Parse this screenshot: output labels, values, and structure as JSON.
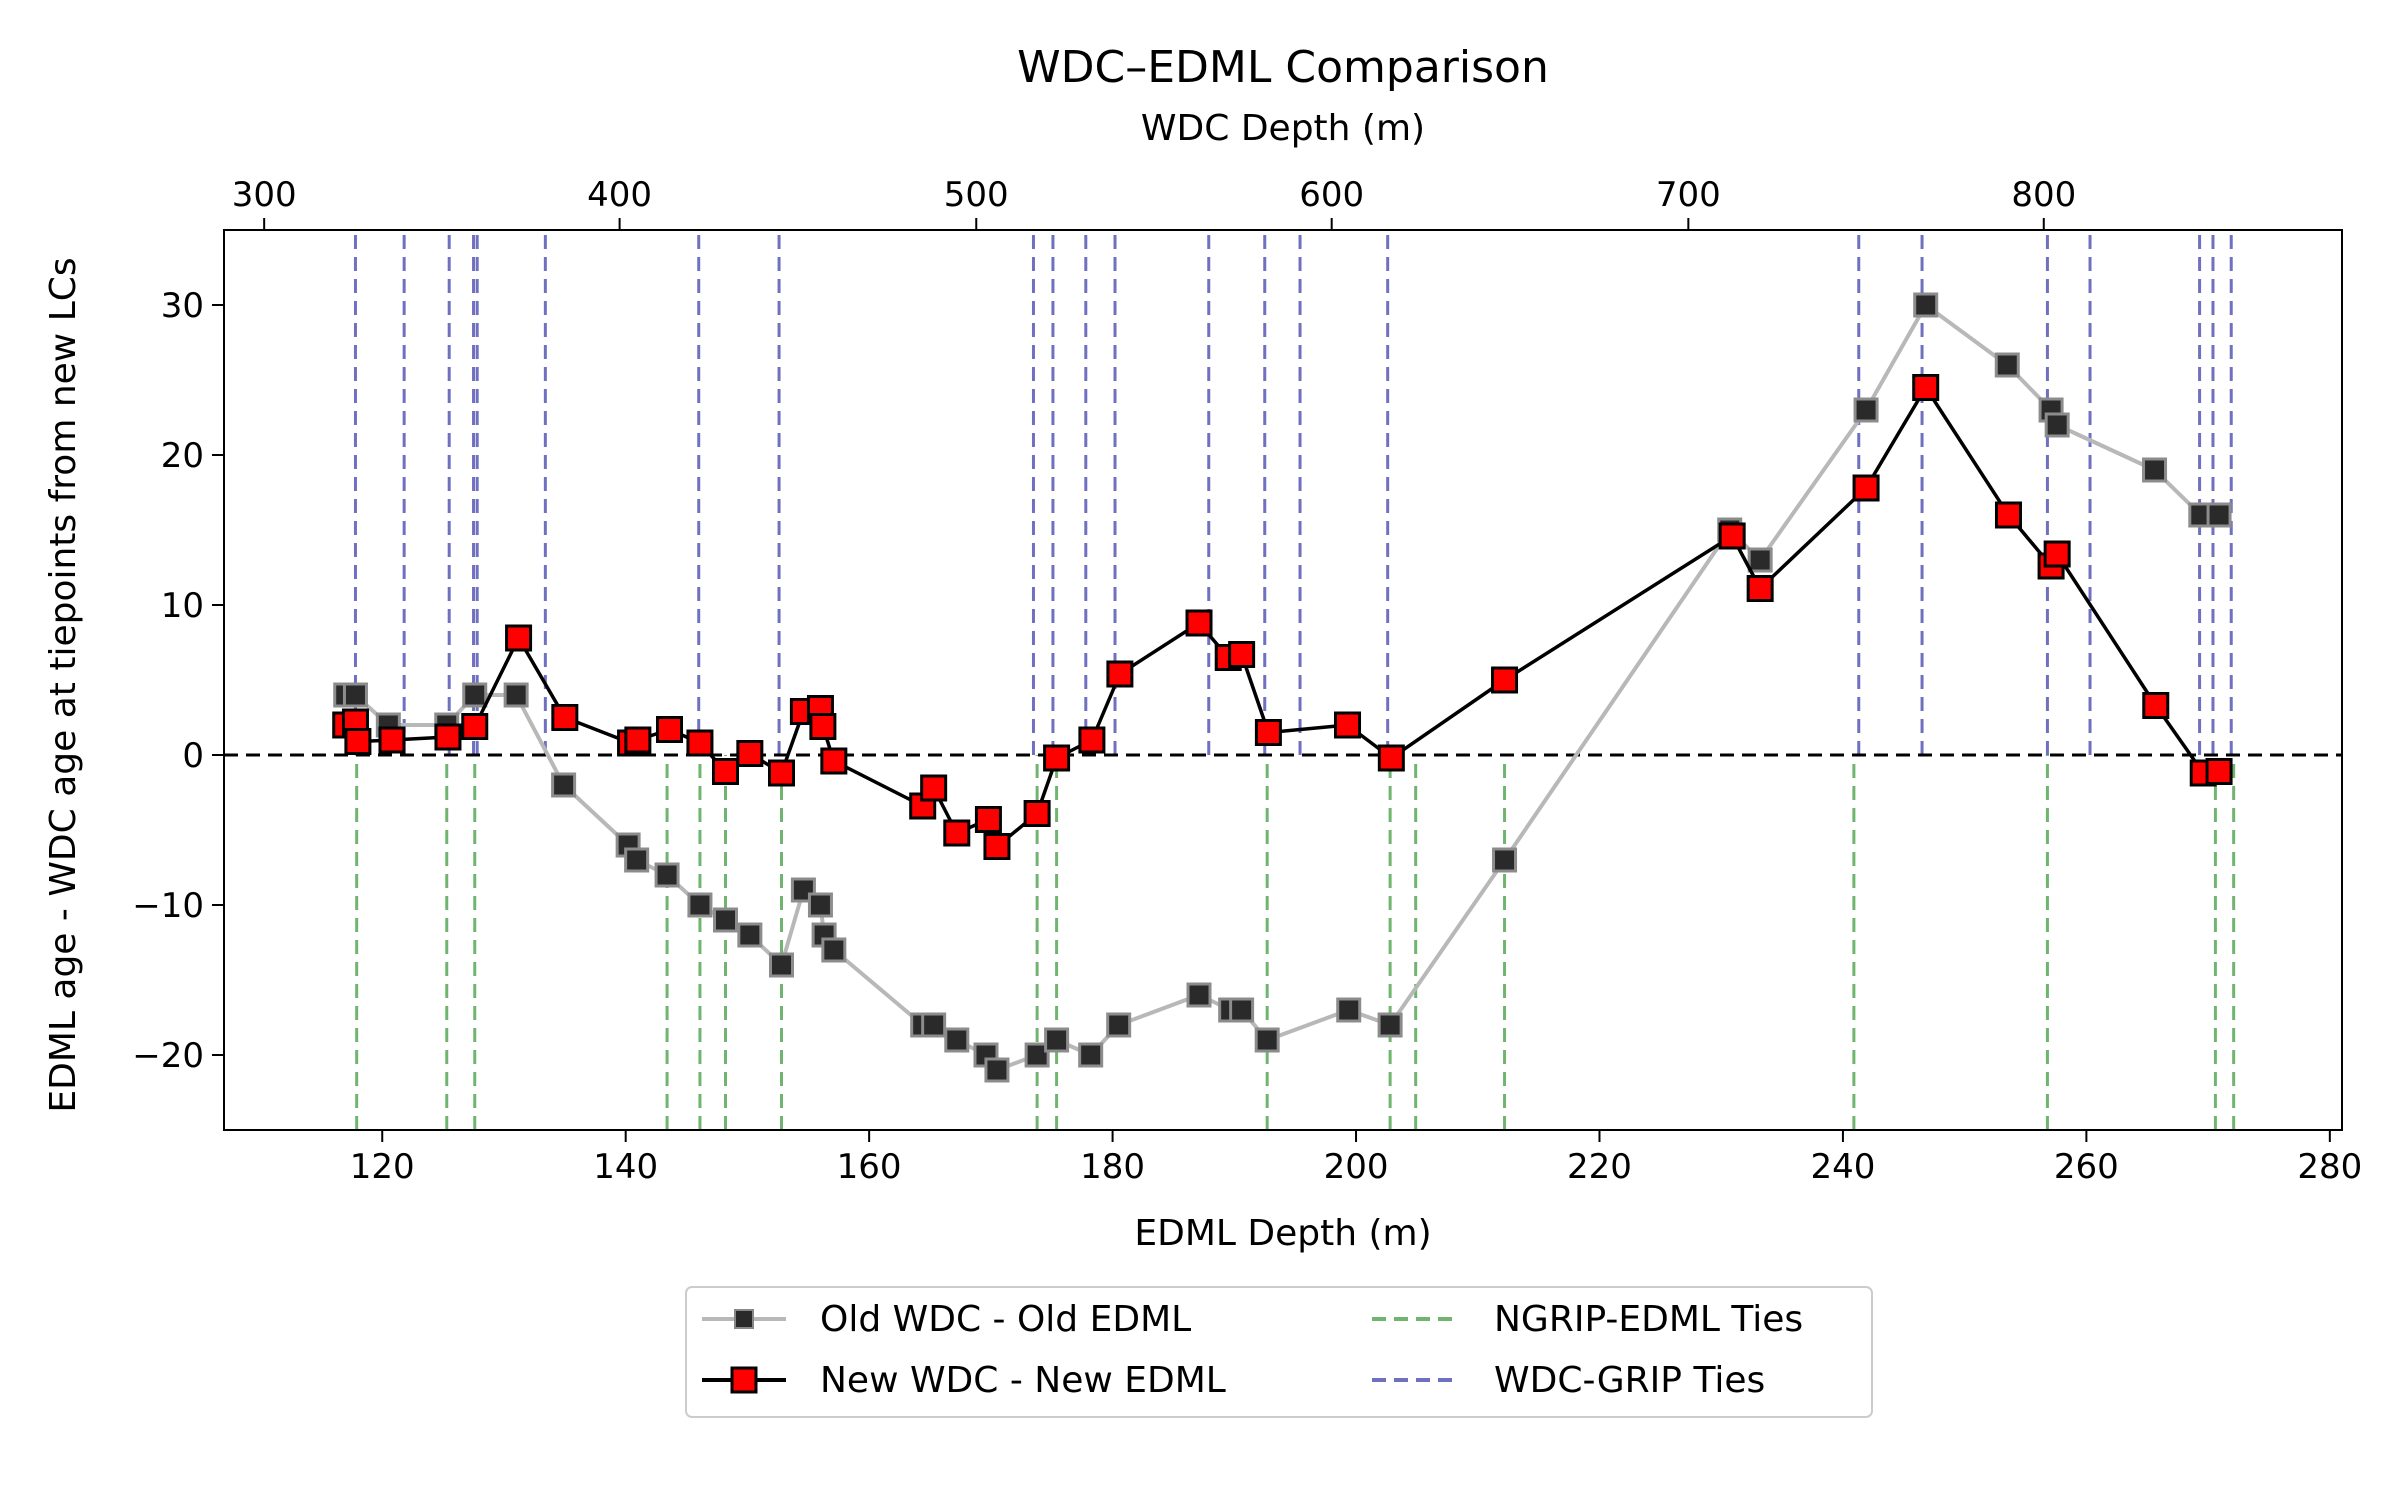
{
  "chart_data": {
    "type": "line",
    "title": "WDC–EDML Comparison",
    "xlabel": "EDML Depth (m)",
    "ylabel": "EDML age - WDC age at tiepoints from new LCs",
    "top_xlabel": "WDC Depth (m)",
    "xlim": [
      107,
      281
    ],
    "ylim": [
      -25,
      35
    ],
    "x_ticks": [
      120,
      140,
      160,
      180,
      200,
      220,
      240,
      260,
      280
    ],
    "y_ticks": [
      -20,
      -10,
      0,
      10,
      20,
      30
    ],
    "y_tick_labels": [
      "−20",
      "−10",
      "0",
      "10",
      "20",
      "30"
    ],
    "top_ticks": [
      {
        "label": "300",
        "x": 110.3
      },
      {
        "label": "400",
        "x": 139.5
      },
      {
        "label": "500",
        "x": 168.8
      },
      {
        "label": "600",
        "x": 198.0
      },
      {
        "label": "700",
        "x": 227.3
      },
      {
        "label": "800",
        "x": 256.5
      }
    ],
    "zero_line": 0,
    "grid": false,
    "legend_position": "below",
    "series": [
      {
        "name": "Old WDC - Old EDML",
        "color": "#b8b8b8",
        "marker_color": "#2a2a2a",
        "x": [
          117.0,
          117.8,
          120.5,
          125.3,
          127.6,
          131.0,
          134.9,
          140.2,
          140.9,
          143.4,
          146.1,
          148.2,
          150.2,
          152.8,
          154.6,
          156.0,
          156.3,
          157.1,
          164.4,
          165.3,
          167.2,
          169.6,
          170.5,
          173.8,
          175.4,
          178.2,
          180.5,
          187.1,
          189.7,
          190.6,
          192.7,
          199.4,
          202.8,
          212.2,
          230.7,
          233.2,
          241.9,
          246.8,
          253.5,
          257.1,
          257.6,
          265.6,
          269.4,
          270.9
        ],
        "y": [
          4,
          4,
          2,
          2,
          4,
          4,
          -2,
          -6,
          -7,
          -8,
          -10,
          -11,
          -12,
          -14,
          -9,
          -10,
          -12,
          -13,
          -18,
          -18,
          -19,
          -20,
          -21,
          -20,
          -19,
          -20,
          -18,
          -16,
          -17,
          -17,
          -19,
          -17,
          -18,
          -7,
          15,
          13,
          23,
          30,
          26,
          23,
          22,
          19,
          16,
          16
        ]
      },
      {
        "name": "New WDC - New EDML",
        "color": "#000000",
        "marker_color": "#ff0000",
        "x": [
          117.0,
          117.8,
          118.0,
          120.8,
          125.4,
          127.6,
          131.2,
          135.0,
          140.4,
          141.0,
          143.6,
          146.1,
          148.2,
          150.2,
          152.8,
          154.6,
          156.0,
          156.2,
          157.1,
          164.4,
          165.3,
          167.2,
          169.8,
          170.5,
          173.8,
          175.4,
          178.3,
          180.6,
          187.1,
          189.5,
          190.6,
          192.8,
          199.3,
          202.9,
          212.2,
          230.9,
          233.2,
          241.9,
          246.8,
          253.6,
          257.1,
          257.6,
          265.7,
          269.6,
          270.9
        ],
        "y": [
          2,
          2.2,
          0.9,
          1,
          1.2,
          1.9,
          7.8,
          2.5,
          0.8,
          1,
          1.7,
          0.8,
          -1.1,
          0.1,
          -1.2,
          2.9,
          3.1,
          1.9,
          -0.4,
          -3.4,
          -2.2,
          -5.2,
          -4.3,
          -6.1,
          -3.9,
          -0.2,
          1,
          5.4,
          8.8,
          6.5,
          6.7,
          1.5,
          2,
          -0.2,
          5,
          14.6,
          11.1,
          17.8,
          24.5,
          16,
          12.6,
          13.4,
          3.3,
          -1.2,
          -1.1
        ]
      }
    ],
    "vlines": [
      {
        "name": "NGRIP-EDML Ties",
        "color": "#6fb56f",
        "y_range": [
          -25,
          0
        ],
        "x": [
          117.9,
          125.3,
          127.6,
          143.4,
          146.1,
          148.2,
          152.8,
          173.8,
          175.4,
          192.7,
          202.8,
          204.9,
          212.2,
          240.9,
          256.8,
          270.6,
          272.1
        ]
      },
      {
        "name": "WDC-GRIP Ties",
        "color": "#7070c0",
        "y_range": [
          0,
          35
        ],
        "x": [
          117.8,
          121.8,
          125.5,
          127.5,
          127.8,
          133.4,
          146.0,
          152.6,
          173.5,
          175.1,
          177.8,
          180.2,
          187.9,
          192.5,
          195.4,
          202.6,
          241.3,
          246.5,
          256.8,
          260.3,
          269.3,
          270.4,
          271.9
        ]
      }
    ]
  },
  "legend": {
    "items": [
      {
        "label": "Old WDC - Old EDML"
      },
      {
        "label": "NGRIP-EDML Ties"
      },
      {
        "label": "New WDC - New EDML"
      },
      {
        "label": "WDC-GRIP Ties"
      }
    ]
  }
}
